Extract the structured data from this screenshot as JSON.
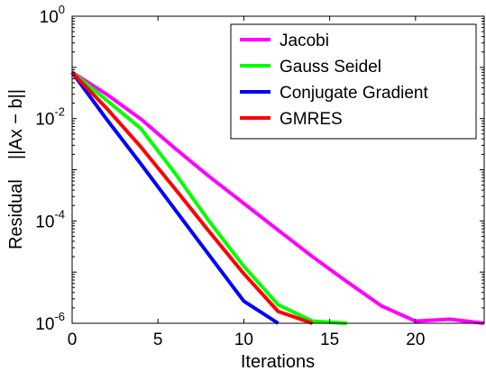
{
  "chart_data": {
    "type": "line",
    "xlabel": "Iterations",
    "ylabel": "Residual    ||Ax − b||",
    "xlim": [
      0,
      24
    ],
    "ylim_exponents": [
      -6,
      0
    ],
    "y_scale": "log",
    "x_ticks": [
      "0",
      "5",
      "10",
      "15",
      "20"
    ],
    "x_tick_values": [
      0,
      5,
      10,
      15,
      20
    ],
    "y_tick_base": "10",
    "y_ticks": [
      {
        "value": 1.0,
        "exp": "0"
      },
      {
        "value": 0.01,
        "exp": "-2"
      },
      {
        "value": 0.0001,
        "exp": "-4"
      },
      {
        "value": 1e-06,
        "exp": "-6"
      }
    ],
    "legend_position": "top-right",
    "grid": false,
    "series": [
      {
        "name": "Jacobi",
        "color": "#ff00ff",
        "x": [
          0,
          2,
          4,
          6,
          8,
          10,
          12,
          14,
          16,
          18,
          20,
          22,
          24
        ],
        "y": [
          0.08,
          0.03,
          0.0098,
          0.0026,
          0.00073,
          0.00022,
          6.6e-05,
          2e-05,
          6.5e-06,
          2.2e-06,
          1.1e-06,
          1.2e-06,
          1e-06
        ]
      },
      {
        "name": "Gauss Seidel",
        "color": "#00ff00",
        "x": [
          0,
          2,
          4,
          6,
          8,
          10,
          12,
          14,
          16
        ],
        "y": [
          0.08,
          0.023,
          0.0064,
          0.00085,
          9.7e-05,
          1.3e-05,
          2.3e-06,
          1.1e-06,
          1e-06
        ]
      },
      {
        "name": "Conjugate Gradient",
        "color": "#0000ff",
        "x": [
          0,
          2,
          4,
          6,
          8,
          10,
          12
        ],
        "y": [
          0.08,
          0.0098,
          0.0013,
          0.000165,
          2.1e-05,
          2.7e-06,
          1e-06
        ]
      },
      {
        "name": "GMRES",
        "color": "#ff0000",
        "x": [
          0,
          2,
          4,
          6,
          8,
          10,
          12,
          14
        ],
        "y": [
          0.08,
          0.016,
          0.0028,
          0.00042,
          6.1e-05,
          9.3e-06,
          1.7e-06,
          1e-06
        ]
      }
    ]
  }
}
